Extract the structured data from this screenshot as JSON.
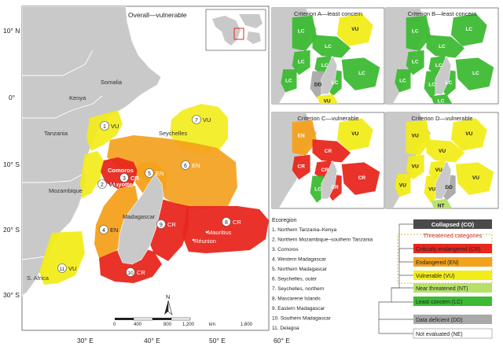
{
  "colors": {
    "land": "#c9c9c9",
    "ocean": "#ffffff",
    "CR": "#e8271e",
    "EN": "#f4a11e",
    "VU": "#f2ec1a",
    "NT": "#b6e06a",
    "LC": "#3dbb34",
    "DD": "#a9a9a9",
    "CO": "#4a4a4a"
  },
  "main_map": {
    "title": "Overall—vulnerable",
    "lat_labels": [
      "10° N",
      "0°",
      "10° S",
      "20° S",
      "30° S"
    ],
    "lon_labels": [
      "30° E",
      "40° E",
      "50° E",
      "60° E"
    ],
    "countries": [
      "Somalia",
      "Kenya",
      "Tanzania",
      "Mozambique",
      "S. Africa",
      "Madagascar",
      "Seychelles"
    ],
    "islands": [
      "Comoros",
      "Mayotte",
      "Mauritius",
      "Réunion"
    ],
    "regions": [
      {
        "num": "1",
        "status": "VU"
      },
      {
        "num": "2",
        "status": "VU"
      },
      {
        "num": "3",
        "status": "CR"
      },
      {
        "num": "4",
        "status": "EN"
      },
      {
        "num": "5",
        "status": "EN"
      },
      {
        "num": "6",
        "status": "EN"
      },
      {
        "num": "7",
        "status": "VU"
      },
      {
        "num": "8",
        "status": "CR"
      },
      {
        "num": "9",
        "status": "CR"
      },
      {
        "num": "10",
        "status": "CR"
      },
      {
        "num": "11",
        "status": "VU"
      }
    ],
    "north": "N",
    "scale_ticks": [
      "0",
      "400",
      "800",
      "1,200",
      "1,600"
    ],
    "scale_unit": "km"
  },
  "panels": [
    {
      "title": "Criterion A—least concern",
      "labels": [
        "LC",
        "LC",
        "VU",
        "LC",
        "LC",
        "LC",
        "LC",
        "DD",
        "VU",
        "LC"
      ]
    },
    {
      "title": "Criterion B—least concern",
      "labels": [
        "LC",
        "LC",
        "LC",
        "LC",
        "LC",
        "LC",
        "LC",
        "LC",
        "LC",
        "LC"
      ]
    },
    {
      "title": "Criterion C—vulnerable",
      "labels": [
        "EN",
        "CR",
        "VU",
        "CR",
        "CR",
        "CR",
        "CR",
        "LC"
      ]
    },
    {
      "title": "Criterion D—vulnerable",
      "labels": [
        "VU",
        "VU",
        "VU",
        "VU",
        "VU",
        "VU",
        "DD",
        "VU",
        "NT",
        "VU"
      ]
    }
  ],
  "ecoregion_list": {
    "heading": "Ecoregion",
    "items": [
      "1. Northern Tanzania–Kenya",
      "2. Northern Mozambique–southern Tanzania",
      "3. Comoros",
      "4. Western Madagascar",
      "5. Northern Madagascar",
      "6. Seychelles, outer",
      "7. Seychelles, northern",
      "8. Mascarene Islands",
      "9. Eastern Madagascar",
      "10. Southern Madagascar",
      "11. Delagoa"
    ]
  },
  "legend": {
    "collapsed": "Collapsed (CO)",
    "threatened_heading": "Threatened categories",
    "cr": "Critically endangered (CR)",
    "en": "Endangered (EN)",
    "vu": "Vulnerable (VU)",
    "nt": "Near threatened (NT)",
    "lc": "Least concern (LC)",
    "dd": "Data deficient (DD)",
    "ne": "Not evaluated (NE)"
  }
}
